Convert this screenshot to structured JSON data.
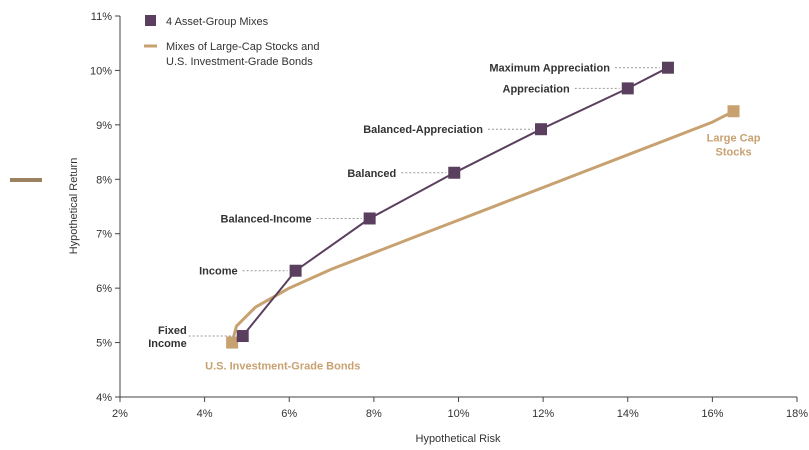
{
  "chart_data": {
    "type": "line",
    "xlabel": "Hypothetical Risk",
    "ylabel": "Hypothetical Return",
    "xlim": [
      2,
      18
    ],
    "ylim": [
      4,
      11
    ],
    "x_ticks": [
      "2%",
      "4%",
      "6%",
      "8%",
      "10%",
      "12%",
      "14%",
      "16%",
      "18%"
    ],
    "y_ticks": [
      "4%",
      "5%",
      "6%",
      "7%",
      "8%",
      "9%",
      "10%",
      "11%"
    ],
    "legend": {
      "position": "top-left",
      "entries": [
        "4 Asset-Group Mixes",
        "Mixes of Large-Cap Stocks and",
        "U.S. Investment-Grade Bonds"
      ]
    },
    "series": [
      {
        "name": "4 Asset-Group Mixes",
        "color": "#5b3f5e",
        "marker": "square",
        "points": [
          {
            "label": [
              "Fixed",
              "Income"
            ],
            "x": 4.9,
            "y": 5.12,
            "side": "left"
          },
          {
            "label": [
              "Income"
            ],
            "x": 6.15,
            "y": 6.32,
            "side": "left"
          },
          {
            "label": [
              "Balanced-Income"
            ],
            "x": 7.9,
            "y": 7.28,
            "side": "left"
          },
          {
            "label": [
              "Balanced"
            ],
            "x": 9.9,
            "y": 8.12,
            "side": "left"
          },
          {
            "label": [
              "Balanced-Appreciation"
            ],
            "x": 11.95,
            "y": 8.92,
            "side": "left"
          },
          {
            "label": [
              "Appreciation"
            ],
            "x": 14.0,
            "y": 9.67,
            "side": "left"
          },
          {
            "label": [
              "Maximum Appreciation"
            ],
            "x": 14.95,
            "y": 10.05,
            "side": "left"
          }
        ]
      },
      {
        "name": "Mixes of Large-Cap Stocks and U.S. Investment-Grade Bonds",
        "color": "#c8a170",
        "curve": [
          {
            "x": 4.65,
            "y": 5.0
          },
          {
            "x": 4.75,
            "y": 5.3
          },
          {
            "x": 5.2,
            "y": 5.65
          },
          {
            "x": 6.0,
            "y": 6.0
          },
          {
            "x": 7.0,
            "y": 6.35
          },
          {
            "x": 8.0,
            "y": 6.65
          },
          {
            "x": 9.0,
            "y": 6.95
          },
          {
            "x": 10.0,
            "y": 7.25
          },
          {
            "x": 11.0,
            "y": 7.55
          },
          {
            "x": 12.0,
            "y": 7.85
          },
          {
            "x": 13.0,
            "y": 8.15
          },
          {
            "x": 14.0,
            "y": 8.45
          },
          {
            "x": 15.0,
            "y": 8.75
          },
          {
            "x": 16.0,
            "y": 9.05
          },
          {
            "x": 16.5,
            "y": 9.25
          }
        ],
        "endpoints": [
          {
            "label": [
              "U.S. Investment-Grade Bonds"
            ],
            "x": 4.65,
            "y": 5.0
          },
          {
            "label": [
              "Large Cap",
              "Stocks"
            ],
            "x": 16.5,
            "y": 9.25
          }
        ]
      }
    ]
  }
}
